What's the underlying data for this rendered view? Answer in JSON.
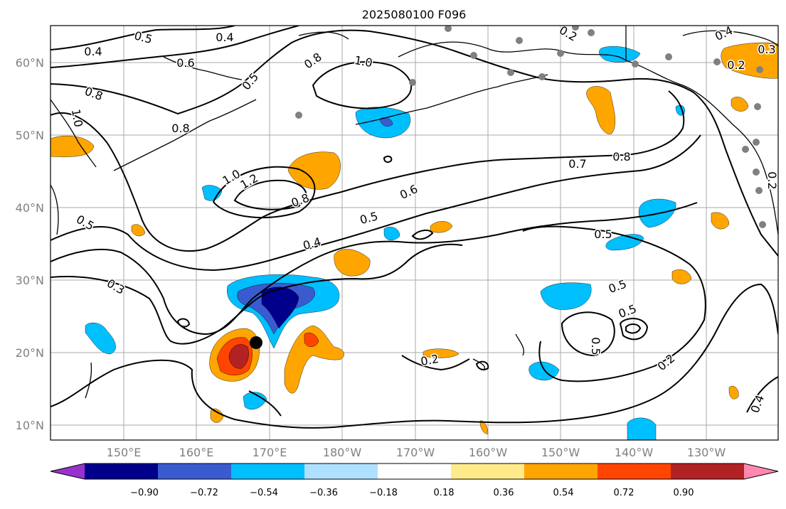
{
  "title": "2025080100 F096",
  "map": {
    "lon_ticks": [
      "150°E",
      "160°E",
      "170°E",
      "180°W",
      "170°W",
      "160°W",
      "150°W",
      "140°W",
      "130°W"
    ],
    "lat_ticks": [
      "60°N",
      "50°N",
      "40°N",
      "30°N",
      "20°N",
      "10°N"
    ],
    "contour_labels": [
      "0.5",
      "0.4",
      "0.4",
      "0.6",
      "0.8",
      "1.0",
      "0.5",
      "0.8",
      "1.0",
      "0.8",
      "0.5",
      "1.0",
      "1.2",
      "0.8",
      "0.6",
      "0.5",
      "0.4",
      "0.3",
      "0.7",
      "0.8",
      "0.5",
      "0.5",
      "0.5",
      "0.5",
      "0.2",
      "0.2",
      "0.2",
      "0.2",
      "0.4",
      "0.3",
      "0.2",
      "0.4"
    ],
    "marker": "storm-center"
  },
  "colorbar": {
    "ticks": [
      "−0.90",
      "−0.72",
      "−0.54",
      "−0.36",
      "−0.18",
      "0.18",
      "0.36",
      "0.54",
      "0.72",
      "0.90"
    ],
    "colors": [
      "#9932cc",
      "#00008b",
      "#3a5bd0",
      "#00bfff",
      "#b0e0ff",
      "#ffffff",
      "#ffeb8a",
      "#ffa500",
      "#ff4500",
      "#b22222",
      "#ff88b0"
    ]
  }
}
